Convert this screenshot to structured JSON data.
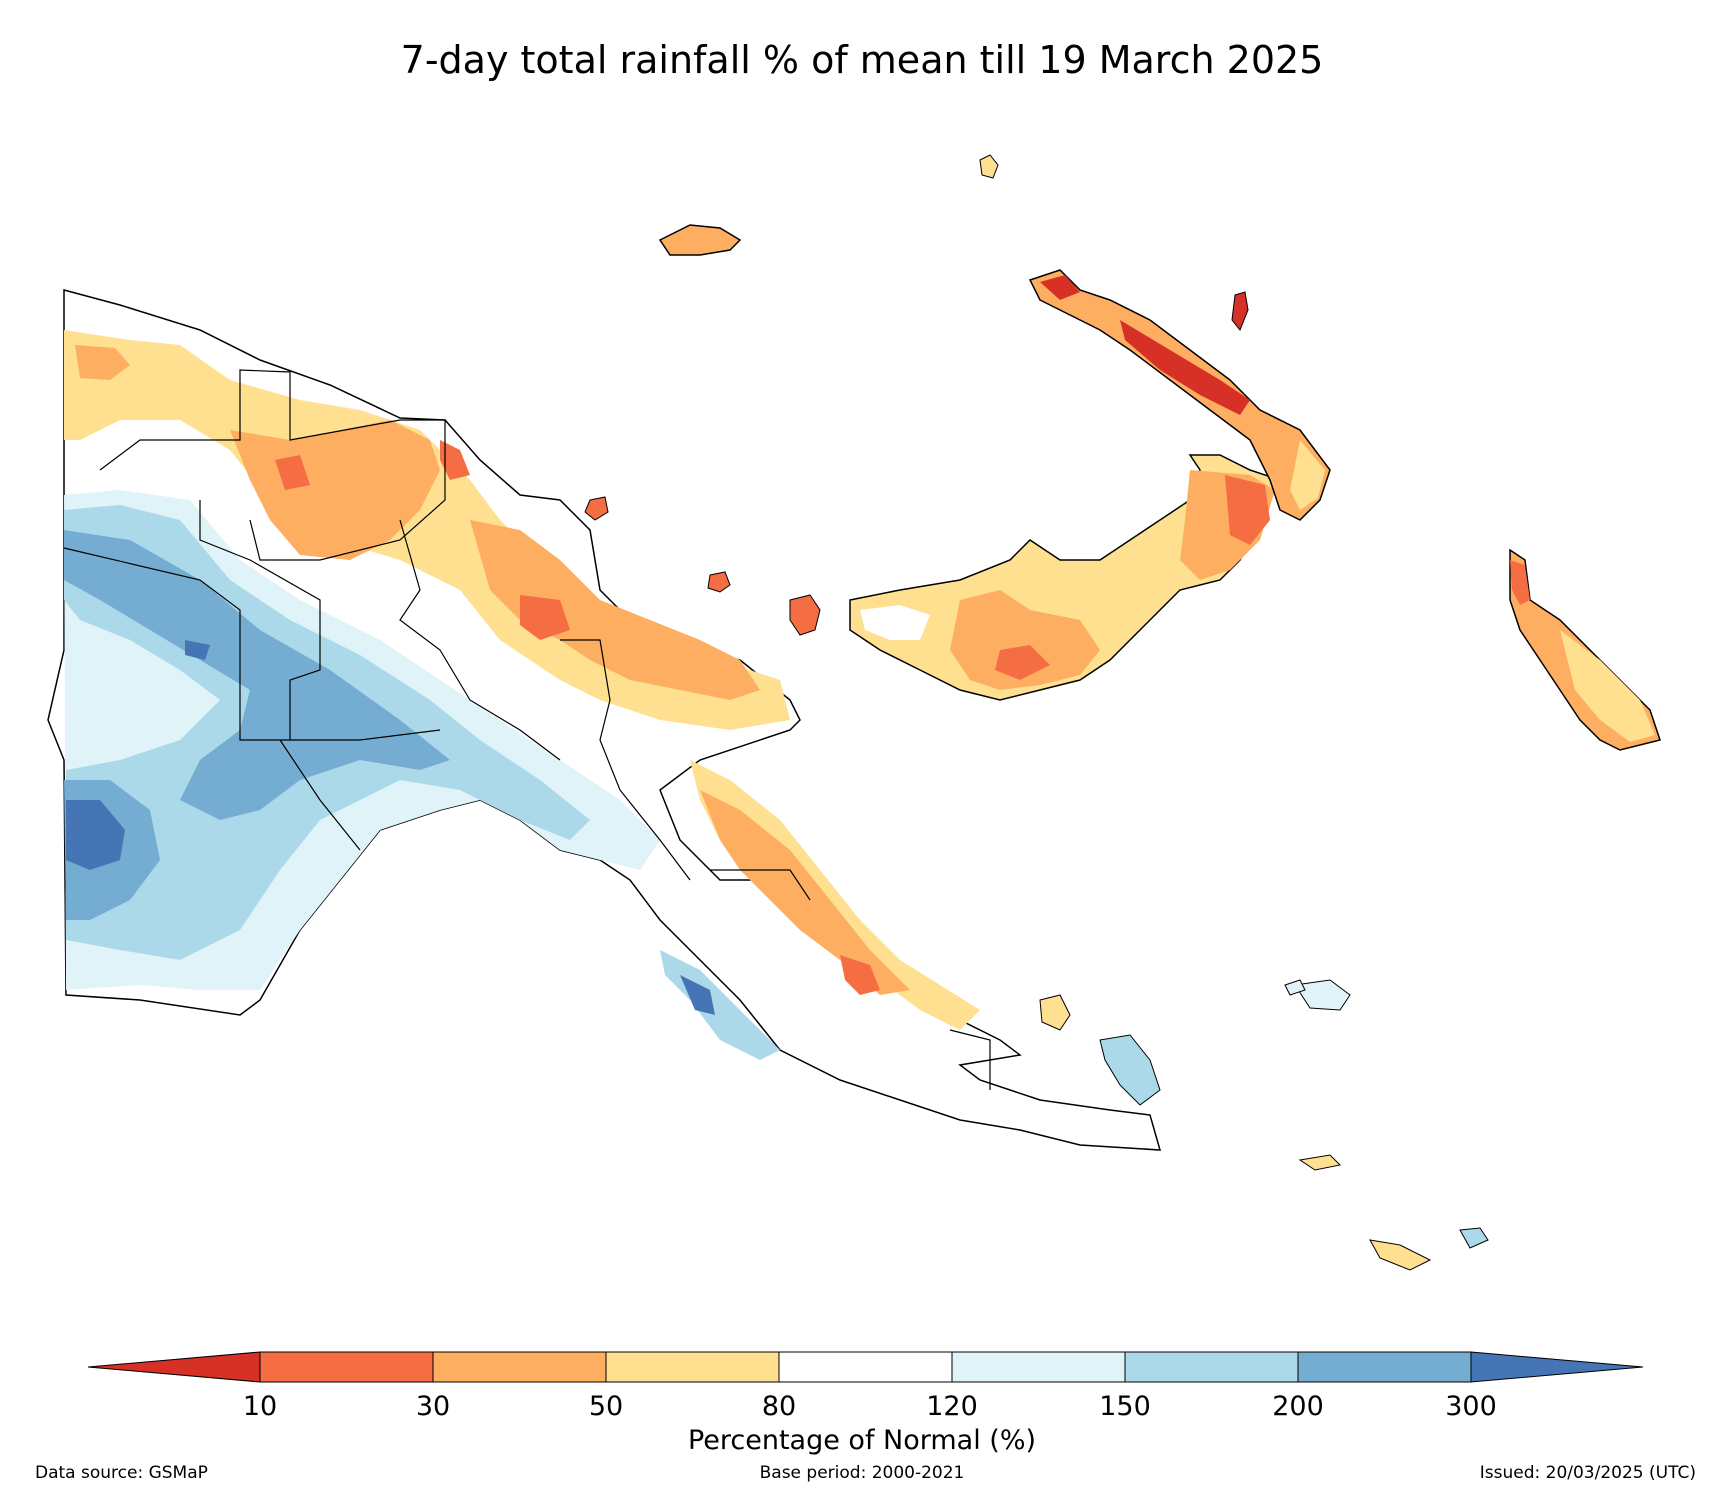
{
  "title": "7-day total rainfall % of mean till 19 March 2025",
  "legend": {
    "label": "Percentage of Normal (%)",
    "ticks": [
      "10",
      "30",
      "50",
      "80",
      "120",
      "150",
      "200",
      "300"
    ],
    "colors": [
      "#d73027",
      "#f46d43",
      "#fdae61",
      "#fee090",
      "#ffffff",
      "#e0f3f8",
      "#abd9e9",
      "#74add1",
      "#4575b4"
    ]
  },
  "footer": {
    "source": "Data source: GSMaP",
    "base_period": "Base period: 2000-2021",
    "issued": "Issued: 20/03/2025 (UTC)"
  }
}
